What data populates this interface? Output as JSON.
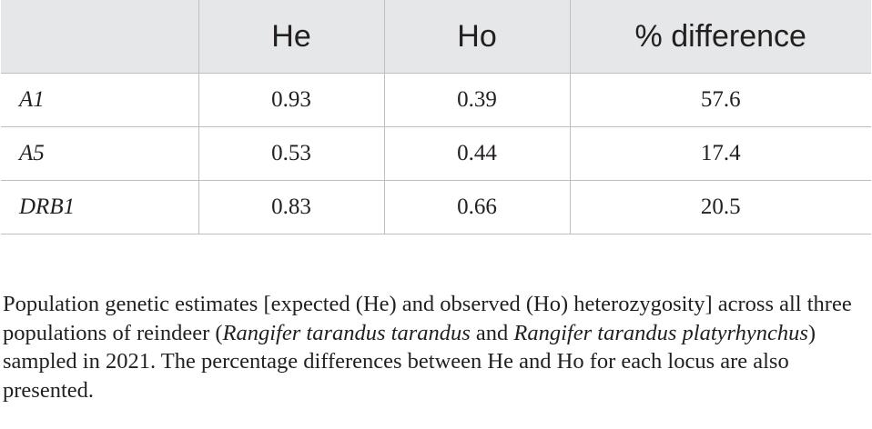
{
  "table": {
    "columns": [
      "",
      "He",
      "Ho",
      "% difference"
    ],
    "rows": [
      {
        "locus": "A1",
        "he": "0.93",
        "ho": "0.39",
        "diff": "57.6"
      },
      {
        "locus": "A5",
        "he": "0.53",
        "ho": "0.44",
        "diff": "17.4"
      },
      {
        "locus": "DRB1",
        "he": "0.83",
        "ho": "0.66",
        "diff": "20.5"
      }
    ]
  },
  "caption": {
    "part1": "Population genetic estimates [expected (He) and observed (Ho) heterozygosity] across all three populations of reindeer (",
    "species1": "Rangifer tarandus tarandus",
    "and": " and ",
    "species2": "Rangifer tarandus platyrhynchus",
    "part2": ") sampled in 2021. The percentage differences between He and Ho for each locus are also presented."
  }
}
